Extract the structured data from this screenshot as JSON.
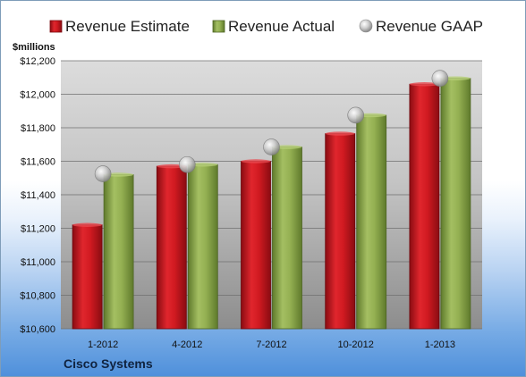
{
  "chart_data": {
    "type": "bar",
    "ylabel": "$millions",
    "categories": [
      "1-2012",
      "4-2012",
      "7-2012",
      "10-2012",
      "1-2013"
    ],
    "series": [
      {
        "name": "Revenue Estimate",
        "type": "bar",
        "color": "#c0141b",
        "values": [
          11220,
          11570,
          11600,
          11765,
          12060
        ]
      },
      {
        "name": "Revenue Actual",
        "type": "bar",
        "color": "#8aa44d",
        "values": [
          11520,
          11580,
          11685,
          11875,
          12095
        ]
      },
      {
        "name": "Revenue GAAP",
        "type": "marker",
        "color": "#b8b8b8",
        "values": [
          11525,
          11580,
          11685,
          11875,
          12095
        ]
      }
    ],
    "ylim": [
      10600,
      12200
    ],
    "yticks": [
      "$10,600",
      "$10,800",
      "$11,000",
      "$11,200",
      "$11,400",
      "$11,600",
      "$11,800",
      "$12,000",
      "$12,200"
    ],
    "grid": true,
    "legend": "top",
    "footer": "Cisco Systems"
  }
}
